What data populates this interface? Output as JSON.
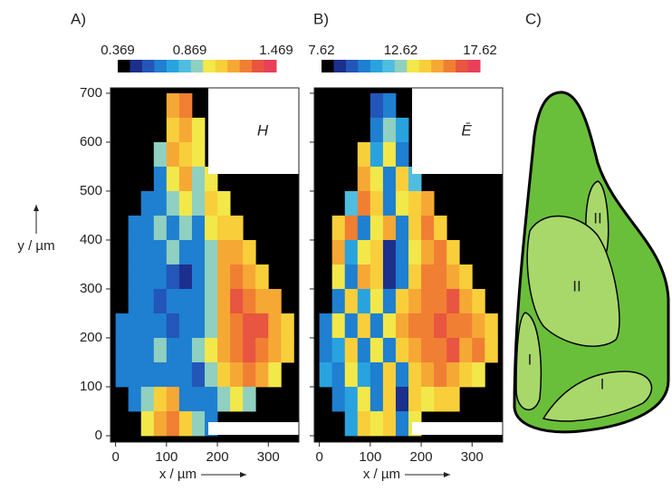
{
  "chart_data": [
    {
      "type": "heatmap",
      "panel_label": "A)",
      "inset_label": "H",
      "xlabel": "x / µm",
      "ylabel": "y / µm",
      "xlim": [
        -10,
        360
      ],
      "ylim": [
        -13,
        711
      ],
      "xticks": [
        0,
        100,
        200,
        300
      ],
      "yticks": [
        0,
        100,
        200,
        300,
        400,
        500,
        600,
        700
      ],
      "clim": [
        0.369,
        1.469
      ],
      "cticks": [
        0.369,
        0.869,
        1.469
      ],
      "colormap": [
        "#000000",
        "#1c2f8c",
        "#2356b8",
        "#1f7fd0",
        "#29a3df",
        "#4fbde0",
        "#8fd0c0",
        "#f2e84a",
        "#f8cf3a",
        "#f6a835",
        "#f07f33",
        "#e85540",
        "#e8405a"
      ],
      "x": [
        12.5,
        37.5,
        62.5,
        87.5,
        112.5,
        137.5,
        162.5,
        187.5,
        212.5,
        237.5,
        262.5,
        287.5,
        312.5,
        337.5
      ],
      "y": [
        675,
        625,
        575,
        525,
        475,
        425,
        375,
        325,
        275,
        225,
        175,
        125,
        75,
        25
      ],
      "z": [
        [
          null,
          null,
          null,
          null,
          1.15,
          1.25,
          null,
          null,
          null,
          null,
          null,
          null,
          null,
          null
        ],
        [
          null,
          null,
          null,
          null,
          1.1,
          1.2,
          1.0,
          null,
          null,
          null,
          null,
          null,
          null,
          null
        ],
        [
          null,
          null,
          null,
          0.95,
          1.2,
          1.1,
          1.0,
          null,
          null,
          null,
          null,
          null,
          null,
          null
        ],
        [
          null,
          null,
          null,
          0.7,
          1.0,
          1.15,
          0.95,
          1.0,
          null,
          null,
          null,
          null,
          null,
          null
        ],
        [
          null,
          null,
          0.65,
          0.7,
          0.95,
          1.0,
          0.9,
          1.1,
          1.0,
          null,
          null,
          null,
          null,
          null
        ],
        [
          null,
          0.65,
          0.7,
          0.9,
          0.7,
          0.95,
          0.65,
          1.0,
          1.1,
          1.05,
          null,
          null,
          null,
          null
        ],
        [
          null,
          0.7,
          0.65,
          0.7,
          0.95,
          0.7,
          0.65,
          0.95,
          1.15,
          1.2,
          1.1,
          null,
          null,
          null
        ],
        [
          null,
          0.7,
          0.65,
          0.7,
          0.6,
          0.4,
          0.7,
          0.9,
          1.2,
          1.25,
          1.2,
          1.1,
          null,
          null
        ],
        [
          null,
          0.7,
          0.65,
          0.6,
          0.7,
          0.65,
          0.7,
          0.95,
          1.2,
          1.3,
          1.25,
          1.2,
          1.15,
          null
        ],
        [
          0.65,
          0.7,
          0.65,
          0.7,
          0.6,
          0.65,
          0.7,
          0.95,
          1.2,
          1.25,
          1.3,
          1.3,
          1.2,
          1.1
        ],
        [
          0.7,
          0.65,
          0.7,
          0.95,
          0.65,
          0.7,
          0.95,
          1.0,
          1.15,
          1.25,
          1.3,
          1.25,
          1.2,
          1.05
        ],
        [
          0.65,
          0.7,
          0.65,
          0.7,
          0.65,
          0.7,
          0.6,
          0.95,
          1.1,
          1.2,
          1.25,
          1.2,
          1.0,
          null
        ],
        [
          null,
          0.7,
          0.95,
          1.1,
          1.2,
          0.7,
          0.65,
          0.7,
          0.95,
          1.0,
          0.9,
          null,
          null,
          null
        ],
        [
          null,
          null,
          1.0,
          1.2,
          1.25,
          1.1,
          0.95,
          0.7,
          null,
          null,
          null,
          null,
          null,
          null
        ]
      ]
    },
    {
      "type": "heatmap",
      "panel_label": "B)",
      "inset_label": "Ē",
      "xlabel": "x / µm",
      "xlim": [
        -10,
        360
      ],
      "ylim": [
        -13,
        711
      ],
      "xticks": [
        0,
        100,
        200,
        300
      ],
      "yticks": [
        0,
        100,
        200,
        300,
        400,
        500,
        600,
        700
      ],
      "clim": [
        7.62,
        17.62
      ],
      "cticks": [
        7.62,
        12.62,
        17.62
      ],
      "colormap": [
        "#000000",
        "#1c2f8c",
        "#2356b8",
        "#1f7fd0",
        "#29a3df",
        "#4fbde0",
        "#8fd0c0",
        "#f2e84a",
        "#f8cf3a",
        "#f6a835",
        "#f07f33",
        "#e85540",
        "#e8405a"
      ],
      "x": [
        12.5,
        37.5,
        62.5,
        87.5,
        112.5,
        137.5,
        162.5,
        187.5,
        212.5,
        237.5,
        262.5,
        287.5,
        312.5,
        337.5
      ],
      "y": [
        675,
        625,
        575,
        525,
        475,
        425,
        375,
        325,
        275,
        225,
        175,
        125,
        75,
        25
      ],
      "z": [
        [
          null,
          null,
          null,
          null,
          9.5,
          10.5,
          null,
          null,
          null,
          null,
          null,
          null,
          null,
          null
        ],
        [
          null,
          null,
          null,
          null,
          10,
          13,
          11,
          null,
          null,
          null,
          null,
          null,
          null,
          null
        ],
        [
          null,
          null,
          null,
          14,
          11,
          13.5,
          10,
          null,
          null,
          null,
          null,
          null,
          null,
          null
        ],
        [
          null,
          null,
          null,
          15,
          13.5,
          10.5,
          14,
          12,
          null,
          null,
          null,
          null,
          null,
          null
        ],
        [
          null,
          null,
          12,
          15.5,
          14,
          10,
          13.5,
          14.5,
          15,
          null,
          null,
          null,
          null,
          null
        ],
        [
          null,
          14,
          15.5,
          10.5,
          13.5,
          15,
          10.5,
          14,
          15.5,
          14.5,
          null,
          null,
          null,
          null
        ],
        [
          null,
          15,
          11,
          13.5,
          14,
          9,
          10,
          13.5,
          15,
          16,
          14.5,
          null,
          null,
          null
        ],
        [
          null,
          13.5,
          10,
          15,
          14,
          7.8,
          10.5,
          14,
          15.5,
          16,
          15,
          14,
          null,
          null
        ],
        [
          null,
          10.5,
          14,
          11,
          13.5,
          10,
          14,
          15,
          16,
          15.5,
          16.5,
          15,
          14,
          null
        ],
        [
          10,
          13.5,
          10.5,
          14,
          10,
          13.5,
          15,
          16,
          15.5,
          16.5,
          16,
          15.5,
          15,
          14
        ],
        [
          10.5,
          11,
          14,
          10,
          13.5,
          10.5,
          14.5,
          15,
          16,
          15.5,
          16.5,
          15,
          15.5,
          14
        ],
        [
          11,
          10,
          13.5,
          11,
          10.5,
          14,
          10,
          14.5,
          15,
          16,
          15,
          14.5,
          13.5,
          null
        ],
        [
          null,
          10.5,
          11,
          13.5,
          10,
          14,
          9,
          14,
          13.5,
          14.5,
          14,
          null,
          null,
          null
        ],
        [
          null,
          null,
          11,
          14.5,
          13.5,
          14,
          10,
          13.5,
          null,
          null,
          null,
          null,
          null,
          null
        ]
      ]
    }
  ],
  "panel_c": {
    "label": "C)",
    "regions": [
      "II",
      "II",
      "I",
      "I"
    ]
  }
}
